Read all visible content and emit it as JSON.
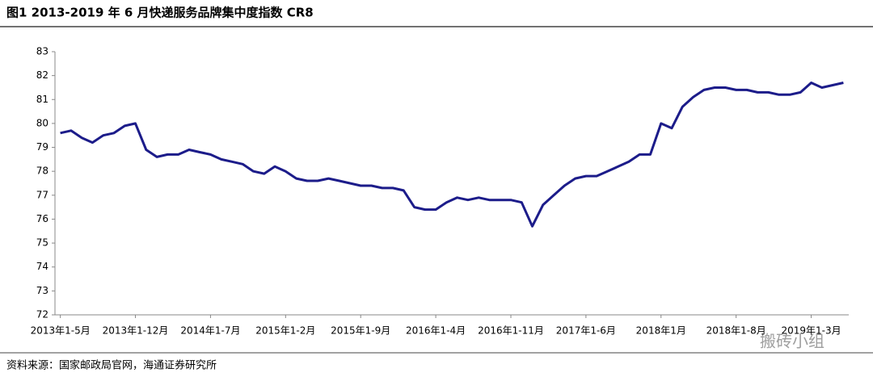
{
  "chart_data": {
    "type": "line",
    "title": "图1  2013-2019 年 6 月快递服务品牌集中度指数 CR8",
    "source": "资料来源：国家邮政局官网，海通证券研究所",
    "watermark": "搬砖小组",
    "categories": [
      "2013年1-5月",
      null,
      null,
      null,
      null,
      null,
      null,
      "2013年1-12月",
      null,
      null,
      null,
      null,
      null,
      null,
      "2014年1-7月",
      null,
      null,
      null,
      null,
      null,
      null,
      "2015年1-2月",
      null,
      null,
      null,
      null,
      null,
      null,
      "2015年1-9月",
      null,
      null,
      null,
      null,
      null,
      null,
      "2016年1-4月",
      null,
      null,
      null,
      null,
      null,
      null,
      "2016年1-11月",
      null,
      null,
      null,
      null,
      null,
      null,
      "2017年1-6月",
      null,
      null,
      null,
      null,
      null,
      null,
      "2018年1月",
      null,
      null,
      null,
      null,
      null,
      null,
      "2018年1-8月",
      null,
      null,
      null,
      null,
      null,
      null,
      "2019年1-3月",
      null,
      null,
      null
    ],
    "series": [
      {
        "name": "CR8",
        "color": "#1c1c8a",
        "values": [
          79.6,
          79.7,
          79.4,
          79.2,
          79.5,
          79.6,
          79.9,
          80.0,
          78.9,
          78.6,
          78.7,
          78.7,
          78.9,
          78.8,
          78.7,
          78.5,
          78.4,
          78.3,
          78.0,
          77.9,
          78.2,
          78.0,
          77.7,
          77.6,
          77.6,
          77.7,
          77.6,
          77.5,
          77.4,
          77.4,
          77.3,
          77.3,
          77.2,
          76.5,
          76.4,
          76.4,
          76.7,
          76.9,
          76.8,
          76.9,
          76.8,
          76.8,
          76.8,
          76.7,
          75.7,
          76.6,
          77.0,
          77.4,
          77.7,
          77.8,
          77.8,
          78.0,
          78.2,
          78.4,
          78.7,
          78.7,
          80.0,
          79.8,
          80.7,
          81.1,
          81.4,
          81.5,
          81.5,
          81.4,
          81.4,
          81.3,
          81.3,
          81.2,
          81.2,
          81.3,
          81.7,
          81.5,
          81.6,
          81.7
        ]
      }
    ],
    "ylim": [
      72,
      83
    ],
    "yticks": [
      72,
      73,
      74,
      75,
      76,
      77,
      78,
      79,
      80,
      81,
      82,
      83
    ],
    "grid": false
  }
}
